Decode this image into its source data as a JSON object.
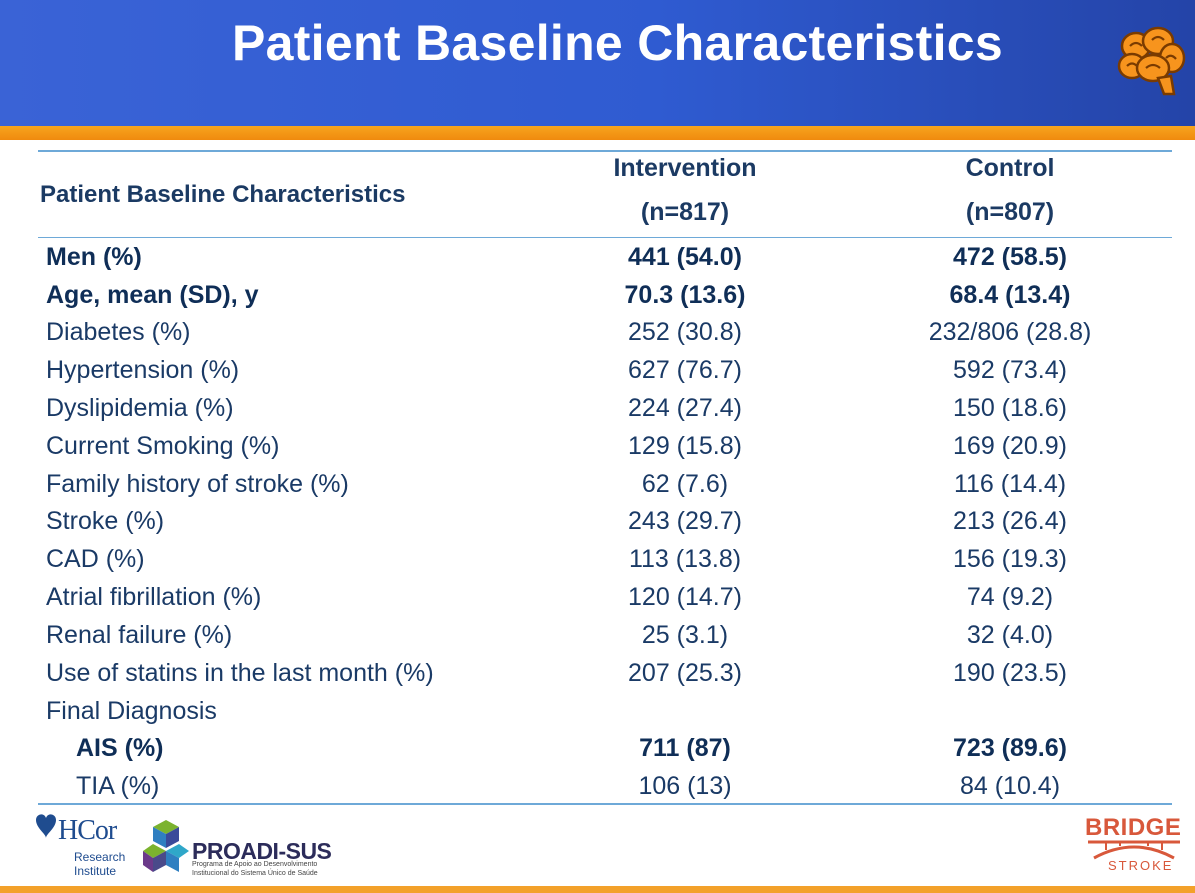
{
  "slide": {
    "title": "Patient Baseline Characteristics",
    "brand_colors": {
      "header_blue": "#2f5bd1",
      "accent_orange": "#f08a0e",
      "text_navy": "#1a3a66"
    }
  },
  "table": {
    "header": {
      "label": "Patient Baseline Characteristics",
      "intervention": "Intervention",
      "intervention_n": "(n=817)",
      "control": "Control",
      "control_n": "(n=807)"
    },
    "rows": [
      {
        "label": "Men (%)",
        "intervention": "441 (54.0)",
        "control": "472 (58.5)"
      },
      {
        "label": "Age, mean (SD), y",
        "intervention": "70.3 (13.6)",
        "control": "68.4 (13.4)"
      },
      {
        "label": "Diabetes (%)",
        "intervention": "252 (30.8)",
        "control": "232/806 (28.8)"
      },
      {
        "label": "Hypertension (%)",
        "intervention": "627 (76.7)",
        "control": "592 (73.4)"
      },
      {
        "label": "Dyslipidemia (%)",
        "intervention": "224 (27.4)",
        "control": "150 (18.6)"
      },
      {
        "label": "Current Smoking (%)",
        "intervention": "129 (15.8)",
        "control": "169 (20.9)"
      },
      {
        "label": "Family history of stroke (%)",
        "intervention": "62 (7.6)",
        "control": "116 (14.4)"
      },
      {
        "label": "Stroke (%)",
        "intervention": "243 (29.7)",
        "control": "213 (26.4)"
      },
      {
        "label": "CAD (%)",
        "intervention": "113 (13.8)",
        "control": "156 (19.3)"
      },
      {
        "label": "Atrial fibrillation (%)",
        "intervention": "120 (14.7)",
        "control": "74 (9.2)"
      },
      {
        "label": "Renal failure (%)",
        "intervention": "25 (3.1)",
        "control": "32 (4.0)"
      },
      {
        "label": "Use of statins in the last month (%)",
        "intervention": "207 (25.3)",
        "control": "190 (23.5)"
      },
      {
        "label": "Final Diagnosis",
        "intervention": "",
        "control": ""
      },
      {
        "label": "AIS (%)",
        "intervention": "711 (87)",
        "control": "723 (89.6)"
      },
      {
        "label": "TIA (%)",
        "intervention": "106 (13)",
        "control": "84 (10.4)"
      }
    ]
  },
  "footer": {
    "hcor_name": "HCor",
    "hcor_line1": "Research",
    "hcor_line2": "Institute",
    "proadi_name": "PROADI-SUS",
    "proadi_line1": "Programa de Apoio ao Desenvolvimento",
    "proadi_line2": "Institucional do Sistema Único de Saúde",
    "bridge_word": "BRIDGE",
    "stroke_word": "STROKE"
  }
}
